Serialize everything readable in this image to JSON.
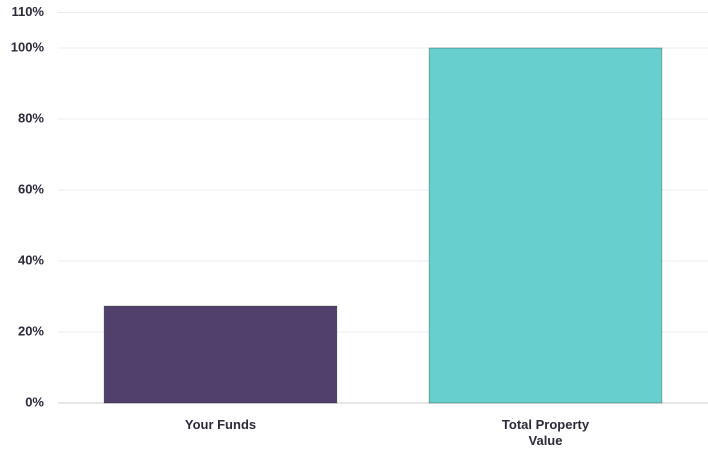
{
  "chart_data": {
    "type": "bar",
    "categories": [
      "Your Funds",
      "Total Property Value"
    ],
    "values": [
      27.3,
      100
    ],
    "colors": [
      "#50406b",
      "#67cfcd"
    ],
    "ylim": [
      0,
      110
    ],
    "yticks": [
      {
        "value": 0,
        "label": "0%"
      },
      {
        "value": 20,
        "label": "20%"
      },
      {
        "value": 40,
        "label": "40%"
      },
      {
        "value": 60,
        "label": "60%"
      },
      {
        "value": 80,
        "label": "80%"
      },
      {
        "value": 100,
        "label": "100%"
      },
      {
        "value": 110,
        "label": "110%"
      }
    ],
    "grid": true
  }
}
